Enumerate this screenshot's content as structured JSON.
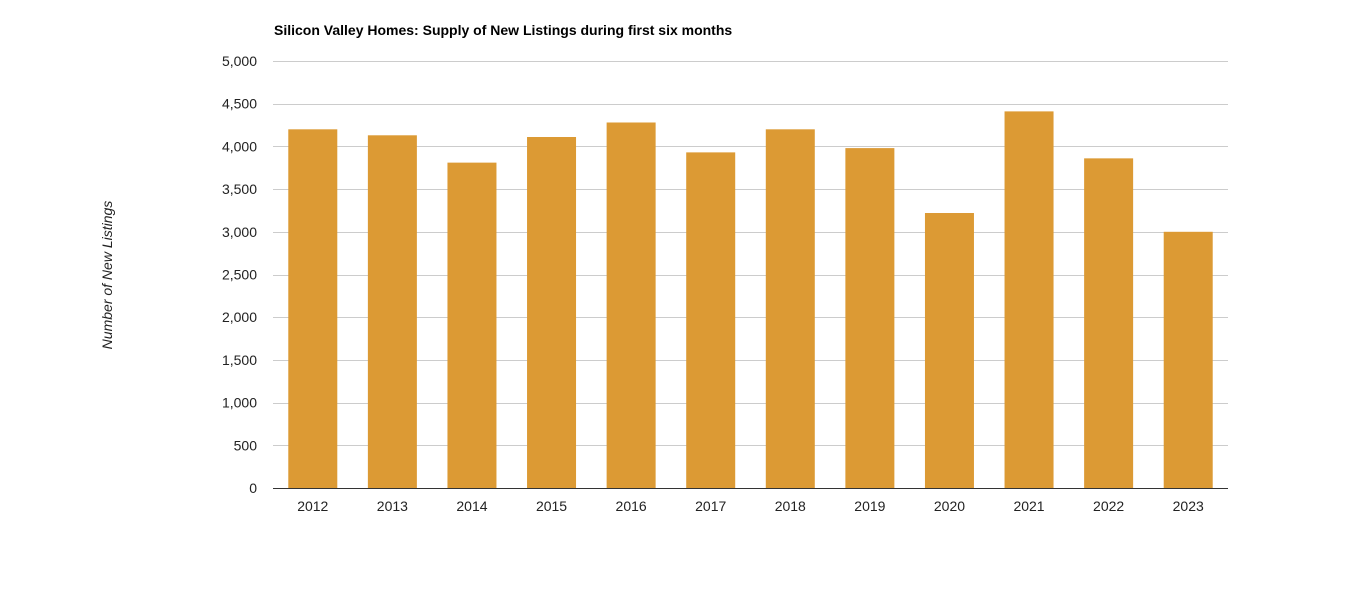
{
  "chart_data": {
    "type": "bar",
    "title": "Silicon Valley Homes: Supply of New Listings during first six months",
    "xlabel": "",
    "ylabel": "Number of New Listings",
    "categories": [
      "2012",
      "2013",
      "2014",
      "2015",
      "2016",
      "2017",
      "2018",
      "2019",
      "2020",
      "2021",
      "2022",
      "2023"
    ],
    "values": [
      4200,
      4130,
      3810,
      4110,
      4280,
      3930,
      4200,
      3980,
      3220,
      4410,
      3860,
      3000
    ],
    "ylim": [
      0,
      5000
    ],
    "yticks": [
      0,
      500,
      1000,
      1500,
      2000,
      2500,
      3000,
      3500,
      4000,
      4500,
      5000
    ],
    "ytick_labels": [
      "0",
      "500",
      "1,000",
      "1,500",
      "2,000",
      "2,500",
      "3,000",
      "3,500",
      "4,000",
      "4,500",
      "5,000"
    ],
    "grid": true,
    "legend": "none",
    "colors": {
      "bar": "#dc9a34",
      "grid": "#cccccc",
      "axis": "#333333"
    }
  }
}
